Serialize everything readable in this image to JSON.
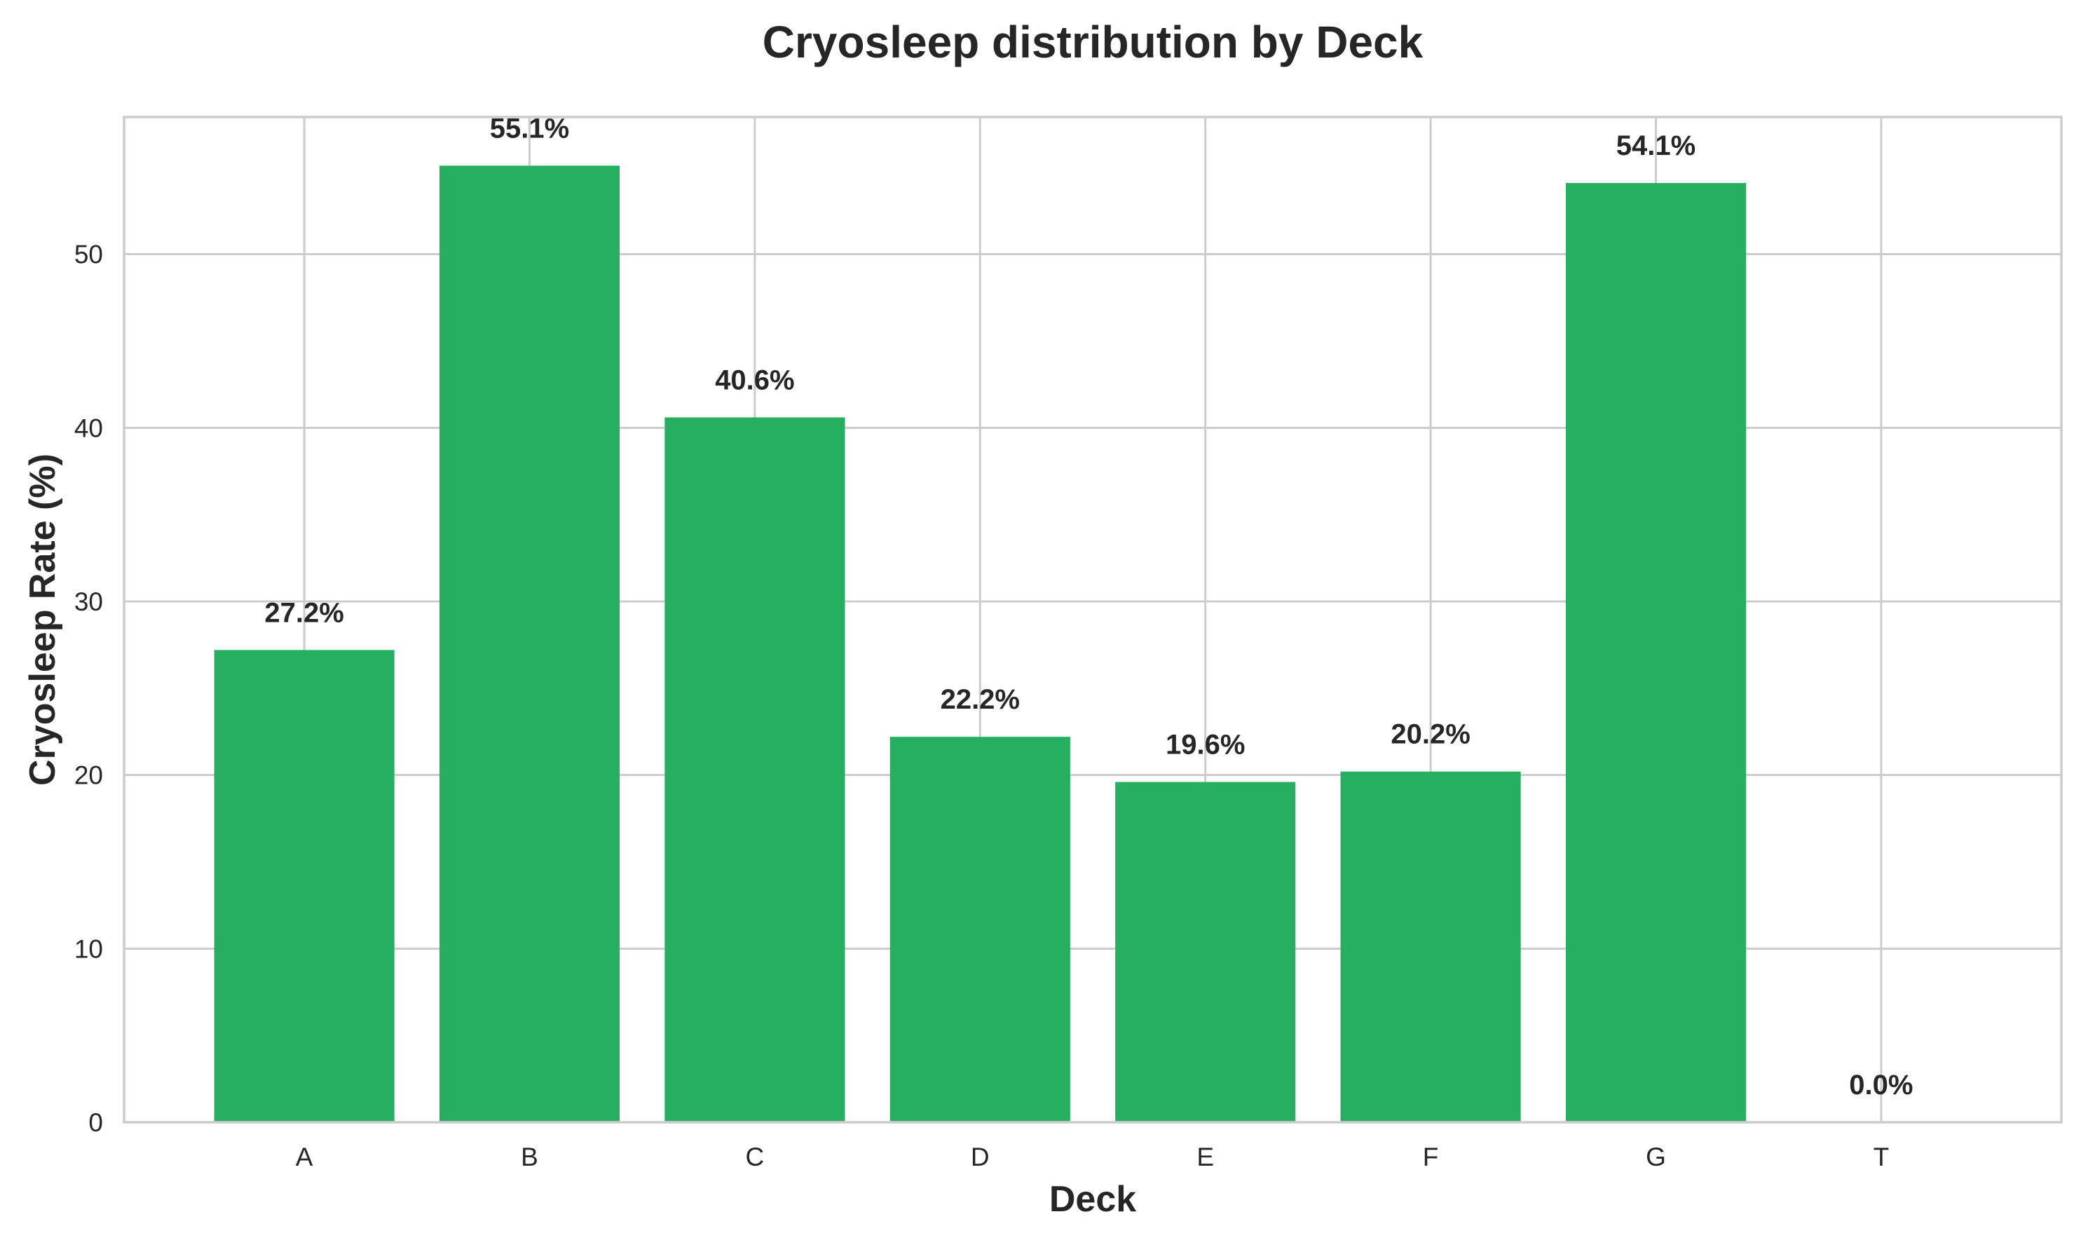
{
  "chart_data": {
    "type": "bar",
    "title": "Cryosleep distribution by Deck",
    "xlabel": "Deck",
    "ylabel": "Cryosleep Rate (%)",
    "categories": [
      "A",
      "B",
      "C",
      "D",
      "E",
      "F",
      "G",
      "T"
    ],
    "values": [
      27.2,
      55.1,
      40.6,
      22.2,
      19.6,
      20.2,
      54.1,
      0.0
    ],
    "data_labels": [
      "27.2%",
      "55.1%",
      "40.6%",
      "22.2%",
      "19.6%",
      "20.2%",
      "54.1%",
      "0.0%"
    ],
    "ylim": [
      0,
      57.9
    ],
    "yticks": [
      0,
      10,
      20,
      30,
      40,
      50
    ],
    "grid": true,
    "legend": null,
    "colors": {
      "bar": "#27ae60",
      "text": "#262626",
      "grid": "#cccccc",
      "background": "#ffffff"
    }
  }
}
